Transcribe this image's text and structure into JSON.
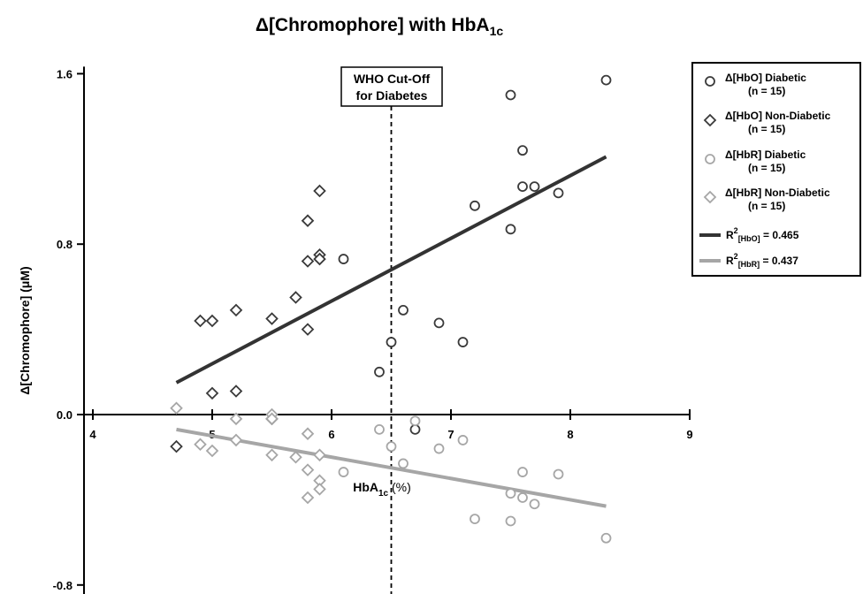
{
  "chart_data": {
    "type": "scatter",
    "title": {
      "main": "Δ[Chromophore] with HbA",
      "sub": "1c"
    },
    "xlabel": {
      "main": "HbA",
      "sub": "1c",
      "rest": " (%)"
    },
    "ylabel": "Δ[Chromophore] (μM)",
    "xlim": [
      4,
      9
    ],
    "ylim": [
      -0.8,
      1.6
    ],
    "xticks": [
      4,
      5,
      6,
      7,
      8,
      9
    ],
    "yticks": [
      -0.8,
      0.0,
      0.8,
      1.6
    ],
    "xtick_labels": [
      "4",
      "5",
      "6",
      "7",
      "8",
      "9"
    ],
    "ytick_labels": [
      "-0.8",
      "0.0",
      "0.8",
      "1.6"
    ],
    "grid": false,
    "legend_position": "top-right",
    "annotation": {
      "x": 6.5,
      "lines": [
        "WHO Cut-Off",
        "for Diabetes"
      ]
    },
    "series": [
      {
        "name": "Δ[HbO] Diabetic",
        "n_label": "(n = 15)",
        "marker": "circle",
        "color": "#3a3a3a",
        "points": [
          [
            8.3,
            1.57
          ],
          [
            7.5,
            1.5
          ],
          [
            7.6,
            1.24
          ],
          [
            7.6,
            1.07
          ],
          [
            7.7,
            1.07
          ],
          [
            7.9,
            1.04
          ],
          [
            7.2,
            0.98
          ],
          [
            7.5,
            0.87
          ],
          [
            6.1,
            0.73
          ],
          [
            6.6,
            0.49
          ],
          [
            6.9,
            0.43
          ],
          [
            6.5,
            0.34
          ],
          [
            7.1,
            0.34
          ],
          [
            6.4,
            0.2
          ],
          [
            6.7,
            -0.07
          ]
        ]
      },
      {
        "name": "Δ[HbO] Non-Diabetic",
        "n_label": "(n = 15)",
        "marker": "diamond",
        "color": "#3a3a3a",
        "points": [
          [
            5.9,
            1.05
          ],
          [
            5.8,
            0.91
          ],
          [
            5.9,
            0.75
          ],
          [
            5.9,
            0.73
          ],
          [
            5.8,
            0.72
          ],
          [
            5.7,
            0.55
          ],
          [
            5.2,
            0.49
          ],
          [
            4.9,
            0.44
          ],
          [
            5.0,
            0.44
          ],
          [
            5.5,
            0.45
          ],
          [
            5.8,
            0.4
          ],
          [
            5.0,
            0.1
          ],
          [
            5.2,
            0.11
          ],
          [
            5.5,
            -0.02
          ],
          [
            4.7,
            -0.15
          ]
        ]
      },
      {
        "name": "Δ[HbR] Diabetic",
        "n_label": "(n = 15)",
        "marker": "circle",
        "color": "#a6a6a6",
        "points": [
          [
            6.4,
            -0.07
          ],
          [
            6.7,
            -0.03
          ],
          [
            7.1,
            -0.12
          ],
          [
            6.5,
            -0.15
          ],
          [
            6.9,
            -0.16
          ],
          [
            6.6,
            -0.23
          ],
          [
            7.6,
            -0.27
          ],
          [
            7.9,
            -0.28
          ],
          [
            7.5,
            -0.37
          ],
          [
            7.6,
            -0.39
          ],
          [
            7.7,
            -0.42
          ],
          [
            7.2,
            -0.49
          ],
          [
            7.5,
            -0.5
          ],
          [
            8.3,
            -0.58
          ],
          [
            6.1,
            -0.27
          ]
        ]
      },
      {
        "name": "Δ[HbR] Non-Diabetic",
        "n_label": "(n = 15)",
        "marker": "diamond",
        "color": "#a6a6a6",
        "points": [
          [
            4.7,
            0.03
          ],
          [
            5.2,
            -0.02
          ],
          [
            5.5,
            0.0
          ],
          [
            5.5,
            -0.02
          ],
          [
            5.8,
            -0.09
          ],
          [
            4.9,
            -0.14
          ],
          [
            5.0,
            -0.17
          ],
          [
            5.2,
            -0.12
          ],
          [
            5.5,
            -0.19
          ],
          [
            5.7,
            -0.2
          ],
          [
            5.9,
            -0.19
          ],
          [
            5.8,
            -0.26
          ],
          [
            5.9,
            -0.31
          ],
          [
            5.9,
            -0.35
          ],
          [
            5.8,
            -0.39
          ]
        ]
      }
    ],
    "fits": [
      {
        "label_main": "R",
        "sup": "2",
        "sub": "[HbO]",
        "value": " = 0.465",
        "color": "#333333",
        "x": [
          4.7,
          8.3
        ],
        "y": [
          0.15,
          1.21
        ]
      },
      {
        "label_main": "R",
        "sup": "2",
        "sub": "[HbR]",
        "value": " = 0.437",
        "color": "#a6a6a6",
        "x": [
          4.7,
          8.3
        ],
        "y": [
          -0.07,
          -0.43
        ]
      }
    ]
  }
}
